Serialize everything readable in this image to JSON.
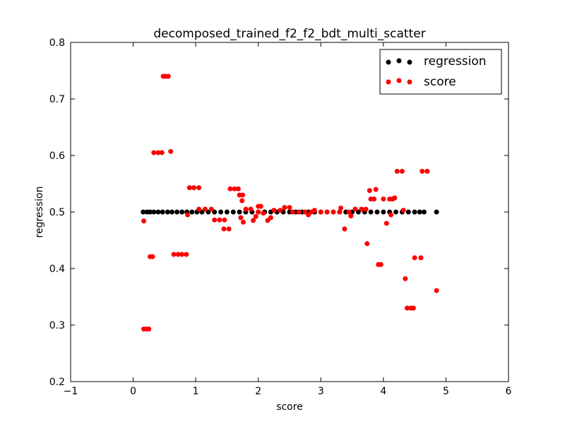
{
  "chart_data": {
    "type": "scatter",
    "title": "decomposed_trained_f2_f2_bdt_multi_scatter",
    "xlabel": "score",
    "ylabel": "regression",
    "xlim": [
      -1,
      6
    ],
    "ylim": [
      0.2,
      0.8
    ],
    "xticks": [
      "−1",
      "0",
      "1",
      "2",
      "3",
      "4",
      "5",
      "6"
    ],
    "yticks": [
      "0.2",
      "0.3",
      "0.4",
      "0.5",
      "0.6",
      "0.7",
      "0.8"
    ],
    "grid": false,
    "legend_position": "top-right",
    "series": [
      {
        "name": "regression",
        "color": "#000000",
        "points": [
          [
            0.16,
            0.5
          ],
          [
            0.22,
            0.5
          ],
          [
            0.27,
            0.5
          ],
          [
            0.33,
            0.5
          ],
          [
            0.4,
            0.5
          ],
          [
            0.47,
            0.5
          ],
          [
            0.55,
            0.5
          ],
          [
            0.62,
            0.5
          ],
          [
            0.7,
            0.5
          ],
          [
            0.78,
            0.5
          ],
          [
            0.86,
            0.5
          ],
          [
            0.94,
            0.5
          ],
          [
            1.02,
            0.5
          ],
          [
            1.1,
            0.5
          ],
          [
            1.2,
            0.5
          ],
          [
            1.3,
            0.5
          ],
          [
            1.4,
            0.5
          ],
          [
            1.5,
            0.5
          ],
          [
            1.6,
            0.5
          ],
          [
            1.7,
            0.5
          ],
          [
            1.8,
            0.5
          ],
          [
            1.9,
            0.5
          ],
          [
            2.0,
            0.5
          ],
          [
            2.1,
            0.5
          ],
          [
            2.2,
            0.5
          ],
          [
            2.3,
            0.5
          ],
          [
            2.4,
            0.5
          ],
          [
            2.5,
            0.5
          ],
          [
            2.6,
            0.5
          ],
          [
            2.7,
            0.5
          ],
          [
            2.8,
            0.5
          ],
          [
            2.9,
            0.5
          ],
          [
            3.0,
            0.5
          ],
          [
            3.1,
            0.5
          ],
          [
            3.2,
            0.5
          ],
          [
            3.3,
            0.5
          ],
          [
            3.4,
            0.5
          ],
          [
            3.5,
            0.5
          ],
          [
            3.6,
            0.5
          ],
          [
            3.7,
            0.5
          ],
          [
            3.8,
            0.5
          ],
          [
            3.9,
            0.5
          ],
          [
            4.0,
            0.5
          ],
          [
            4.1,
            0.5
          ],
          [
            4.2,
            0.5
          ],
          [
            4.3,
            0.5
          ],
          [
            4.4,
            0.5
          ],
          [
            4.5,
            0.5
          ],
          [
            4.58,
            0.5
          ],
          [
            4.65,
            0.5
          ],
          [
            4.85,
            0.5
          ]
        ]
      },
      {
        "name": "score",
        "color": "#ff0000",
        "points": [
          [
            0.17,
            0.484
          ],
          [
            0.17,
            0.293
          ],
          [
            0.21,
            0.293
          ],
          [
            0.25,
            0.293
          ],
          [
            0.27,
            0.421
          ],
          [
            0.31,
            0.421
          ],
          [
            0.33,
            0.605
          ],
          [
            0.4,
            0.605
          ],
          [
            0.46,
            0.605
          ],
          [
            0.6,
            0.607
          ],
          [
            0.48,
            0.74
          ],
          [
            0.52,
            0.74
          ],
          [
            0.56,
            0.74
          ],
          [
            0.65,
            0.425
          ],
          [
            0.72,
            0.425
          ],
          [
            0.78,
            0.425
          ],
          [
            0.85,
            0.425
          ],
          [
            0.87,
            0.495
          ],
          [
            0.9,
            0.543
          ],
          [
            0.97,
            0.543
          ],
          [
            1.05,
            0.543
          ],
          [
            1.05,
            0.505
          ],
          [
            1.15,
            0.505
          ],
          [
            1.25,
            0.505
          ],
          [
            1.3,
            0.486
          ],
          [
            1.38,
            0.486
          ],
          [
            1.46,
            0.486
          ],
          [
            1.45,
            0.47
          ],
          [
            1.53,
            0.47
          ],
          [
            1.55,
            0.541
          ],
          [
            1.62,
            0.541
          ],
          [
            1.68,
            0.541
          ],
          [
            1.7,
            0.53
          ],
          [
            1.75,
            0.53
          ],
          [
            1.74,
            0.52
          ],
          [
            1.72,
            0.49
          ],
          [
            1.76,
            0.482
          ],
          [
            1.8,
            0.505
          ],
          [
            1.88,
            0.505
          ],
          [
            1.92,
            0.485
          ],
          [
            1.96,
            0.492
          ],
          [
            2.0,
            0.51
          ],
          [
            2.04,
            0.51
          ],
          [
            2.0,
            0.5
          ],
          [
            2.08,
            0.498
          ],
          [
            2.15,
            0.485
          ],
          [
            2.2,
            0.49
          ],
          [
            2.25,
            0.503
          ],
          [
            2.35,
            0.503
          ],
          [
            2.42,
            0.508
          ],
          [
            2.5,
            0.508
          ],
          [
            2.55,
            0.5
          ],
          [
            2.65,
            0.5
          ],
          [
            2.75,
            0.5
          ],
          [
            2.8,
            0.495
          ],
          [
            2.85,
            0.5
          ],
          [
            2.9,
            0.503
          ],
          [
            3.0,
            0.5
          ],
          [
            3.1,
            0.5
          ],
          [
            3.2,
            0.5
          ],
          [
            3.3,
            0.5
          ],
          [
            3.32,
            0.507
          ],
          [
            3.38,
            0.47
          ],
          [
            3.45,
            0.5
          ],
          [
            3.48,
            0.493
          ],
          [
            3.55,
            0.505
          ],
          [
            3.65,
            0.505
          ],
          [
            3.72,
            0.505
          ],
          [
            3.74,
            0.444
          ],
          [
            3.78,
            0.538
          ],
          [
            3.8,
            0.523
          ],
          [
            3.85,
            0.523
          ],
          [
            3.88,
            0.54
          ],
          [
            3.92,
            0.407
          ],
          [
            3.96,
            0.407
          ],
          [
            4.0,
            0.523
          ],
          [
            4.05,
            0.48
          ],
          [
            4.1,
            0.523
          ],
          [
            4.15,
            0.523
          ],
          [
            4.12,
            0.495
          ],
          [
            4.18,
            0.525
          ],
          [
            4.22,
            0.572
          ],
          [
            4.3,
            0.572
          ],
          [
            4.32,
            0.503
          ],
          [
            4.35,
            0.382
          ],
          [
            4.38,
            0.33
          ],
          [
            4.44,
            0.33
          ],
          [
            4.48,
            0.33
          ],
          [
            4.5,
            0.419
          ],
          [
            4.6,
            0.419
          ],
          [
            4.62,
            0.572
          ],
          [
            4.7,
            0.572
          ],
          [
            4.85,
            0.361
          ]
        ]
      }
    ]
  }
}
